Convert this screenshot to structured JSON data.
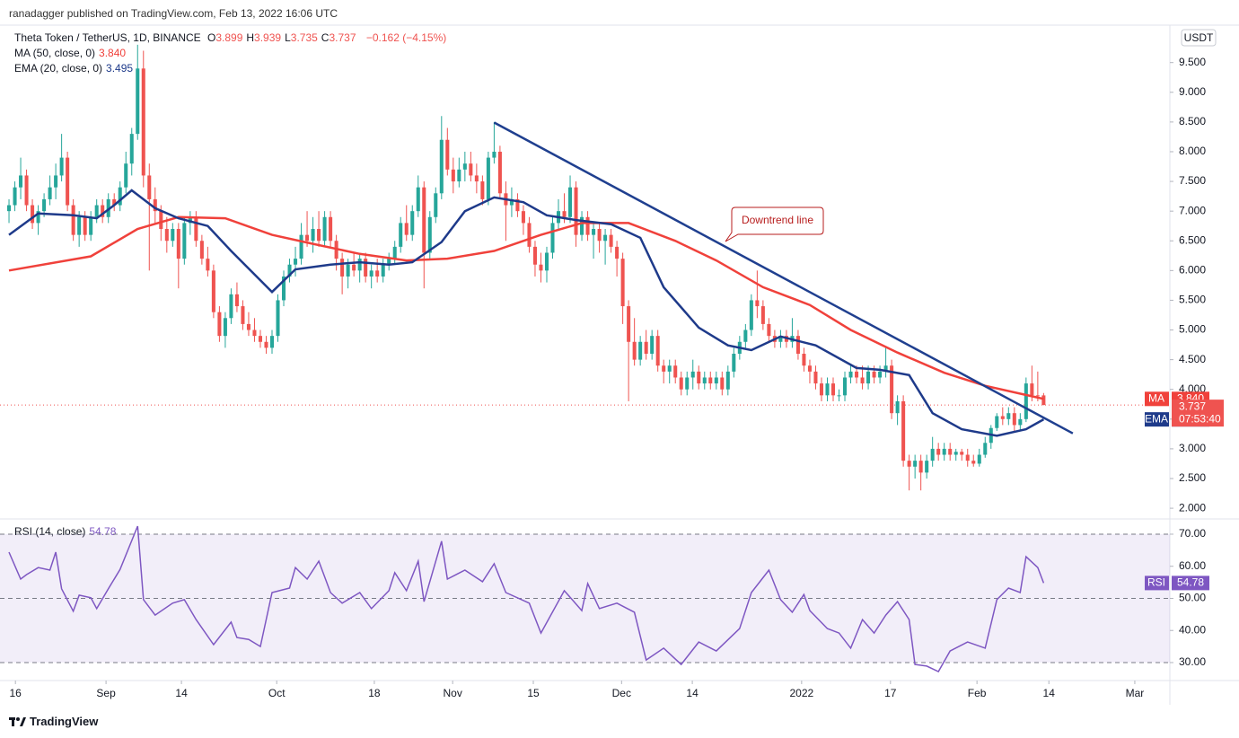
{
  "header": {
    "byline": "ranadagger published on TradingView.com, Feb 13, 2022 16:06 UTC"
  },
  "footer": {
    "brand": "TradingView"
  },
  "chart_data": {
    "type": "candlestick",
    "title": "Theta Token / TetherUS, 1D, BINANCE",
    "ohlc_labels": [
      "O",
      "H",
      "L",
      "C"
    ],
    "change_label": "−0.162 (−4.15%)",
    "currency": "USDT",
    "countdown": "07:53:40",
    "up_color": "#26a69a",
    "down_color": "#ef5350",
    "ohlc": [
      [
        7.0,
        7.2,
        6.8,
        7.1
      ],
      [
        7.1,
        7.5,
        7.0,
        7.4
      ],
      [
        7.4,
        7.9,
        7.2,
        7.6
      ],
      [
        7.6,
        7.7,
        7.0,
        7.1
      ],
      [
        7.1,
        7.2,
        6.7,
        6.8
      ],
      [
        6.8,
        7.1,
        6.6,
        7.0
      ],
      [
        7.0,
        7.3,
        6.9,
        7.2
      ],
      [
        7.2,
        7.6,
        7.1,
        7.4
      ],
      [
        7.4,
        7.8,
        7.2,
        7.6
      ],
      [
        7.6,
        8.3,
        7.5,
        7.9
      ],
      [
        7.9,
        8.0,
        7.0,
        7.1
      ],
      [
        7.1,
        7.2,
        6.5,
        6.6
      ],
      [
        6.6,
        7.0,
        6.4,
        6.9
      ],
      [
        6.9,
        7.0,
        6.5,
        6.6
      ],
      [
        6.6,
        7.0,
        6.5,
        6.9
      ],
      [
        6.9,
        7.2,
        6.8,
        7.1
      ],
      [
        7.1,
        7.2,
        6.8,
        6.9
      ],
      [
        6.9,
        7.3,
        6.8,
        7.2
      ],
      [
        7.2,
        7.3,
        7.0,
        7.1
      ],
      [
        7.1,
        7.5,
        7.0,
        7.4
      ],
      [
        7.4,
        8.0,
        7.3,
        7.8
      ],
      [
        7.8,
        8.4,
        7.6,
        8.3
      ],
      [
        8.3,
        9.8,
        8.2,
        9.4
      ],
      [
        9.4,
        9.7,
        7.4,
        7.6
      ],
      [
        7.6,
        7.8,
        6.0,
        7.2
      ],
      [
        7.2,
        7.4,
        6.8,
        7.0
      ],
      [
        7.0,
        7.1,
        6.5,
        6.7
      ],
      [
        6.7,
        6.9,
        6.3,
        6.5
      ],
      [
        6.5,
        6.8,
        6.4,
        6.7
      ],
      [
        6.7,
        6.8,
        5.7,
        6.2
      ],
      [
        6.2,
        6.9,
        6.1,
        6.8
      ],
      [
        6.8,
        7.0,
        6.6,
        6.9
      ],
      [
        6.9,
        7.0,
        6.4,
        6.5
      ],
      [
        6.5,
        6.6,
        6.1,
        6.2
      ],
      [
        6.2,
        6.4,
        5.9,
        6.0
      ],
      [
        6.0,
        6.1,
        5.2,
        5.3
      ],
      [
        5.3,
        5.4,
        4.8,
        4.9
      ],
      [
        4.9,
        5.3,
        4.7,
        5.2
      ],
      [
        5.2,
        5.7,
        5.1,
        5.6
      ],
      [
        5.6,
        5.8,
        5.3,
        5.4
      ],
      [
        5.4,
        5.5,
        5.0,
        5.1
      ],
      [
        5.1,
        5.3,
        4.9,
        5.0
      ],
      [
        5.0,
        5.2,
        4.8,
        4.9
      ],
      [
        4.9,
        5.0,
        4.7,
        4.8
      ],
      [
        4.8,
        4.9,
        4.6,
        4.7
      ],
      [
        4.7,
        5.0,
        4.6,
        4.9
      ],
      [
        4.9,
        5.6,
        4.8,
        5.5
      ],
      [
        5.5,
        6.0,
        5.4,
        5.9
      ],
      [
        5.9,
        6.2,
        5.8,
        6.1
      ],
      [
        6.1,
        6.4,
        5.9,
        6.2
      ],
      [
        6.2,
        6.8,
        6.1,
        6.6
      ],
      [
        6.6,
        7.0,
        6.4,
        6.5
      ],
      [
        6.5,
        6.9,
        6.3,
        6.7
      ],
      [
        6.7,
        7.0,
        6.4,
        6.5
      ],
      [
        6.5,
        7.0,
        6.4,
        6.9
      ],
      [
        6.9,
        7.0,
        6.4,
        6.5
      ],
      [
        6.5,
        6.6,
        6.0,
        6.2
      ],
      [
        6.2,
        6.3,
        5.6,
        5.9
      ],
      [
        5.9,
        6.2,
        5.7,
        6.1
      ],
      [
        6.1,
        6.3,
        5.9,
        6.0
      ],
      [
        6.0,
        6.3,
        5.8,
        6.2
      ],
      [
        6.2,
        6.3,
        5.8,
        5.9
      ],
      [
        5.9,
        6.1,
        5.7,
        6.0
      ],
      [
        6.0,
        6.2,
        5.8,
        5.9
      ],
      [
        5.9,
        6.2,
        5.8,
        6.1
      ],
      [
        6.1,
        6.3,
        6.0,
        6.2
      ],
      [
        6.2,
        6.5,
        6.1,
        6.4
      ],
      [
        6.4,
        6.9,
        6.3,
        6.8
      ],
      [
        6.8,
        7.1,
        6.5,
        6.6
      ],
      [
        6.6,
        7.1,
        6.5,
        7.0
      ],
      [
        7.0,
        7.6,
        6.9,
        7.4
      ],
      [
        7.4,
        7.5,
        5.7,
        6.3
      ],
      [
        6.3,
        7.0,
        6.2,
        6.9
      ],
      [
        6.9,
        7.4,
        6.8,
        7.3
      ],
      [
        7.3,
        8.6,
        7.2,
        8.2
      ],
      [
        8.2,
        8.4,
        7.6,
        7.7
      ],
      [
        7.7,
        7.9,
        7.3,
        7.5
      ],
      [
        7.5,
        7.9,
        7.4,
        7.7
      ],
      [
        7.7,
        8.0,
        7.5,
        7.8
      ],
      [
        7.8,
        8.0,
        7.5,
        7.6
      ],
      [
        7.6,
        7.8,
        7.3,
        7.5
      ],
      [
        7.5,
        7.6,
        7.1,
        7.2
      ],
      [
        7.2,
        8.0,
        7.1,
        7.9
      ],
      [
        7.9,
        8.5,
        7.8,
        8.0
      ],
      [
        8.0,
        8.1,
        7.2,
        7.3
      ],
      [
        7.3,
        7.5,
        6.5,
        7.1
      ],
      [
        7.1,
        7.4,
        6.9,
        7.2
      ],
      [
        7.2,
        7.3,
        6.9,
        7.0
      ],
      [
        7.0,
        7.1,
        6.6,
        6.8
      ],
      [
        6.8,
        6.9,
        6.3,
        6.4
      ],
      [
        6.4,
        6.5,
        5.9,
        6.1
      ],
      [
        6.1,
        6.3,
        5.8,
        6.0
      ],
      [
        6.0,
        6.4,
        5.8,
        6.3
      ],
      [
        6.3,
        6.9,
        6.2,
        6.8
      ],
      [
        6.8,
        7.2,
        6.7,
        7.0
      ],
      [
        7.0,
        7.3,
        6.8,
        6.9
      ],
      [
        6.9,
        7.6,
        6.8,
        7.4
      ],
      [
        7.4,
        7.5,
        6.4,
        6.6
      ],
      [
        6.6,
        7.0,
        6.5,
        6.9
      ],
      [
        6.9,
        7.0,
        6.5,
        6.6
      ],
      [
        6.6,
        6.8,
        6.2,
        6.7
      ],
      [
        6.7,
        6.8,
        6.3,
        6.5
      ],
      [
        6.5,
        6.7,
        6.1,
        6.6
      ],
      [
        6.6,
        6.7,
        6.3,
        6.4
      ],
      [
        6.4,
        6.5,
        5.9,
        6.2
      ],
      [
        6.2,
        6.3,
        5.1,
        5.4
      ],
      [
        5.4,
        5.5,
        3.8,
        4.8
      ],
      [
        4.8,
        5.2,
        4.4,
        4.5
      ],
      [
        4.5,
        4.9,
        4.4,
        4.8
      ],
      [
        4.8,
        5.0,
        4.5,
        4.6
      ],
      [
        4.6,
        5.0,
        4.5,
        4.9
      ],
      [
        4.9,
        5.0,
        4.3,
        4.4
      ],
      [
        4.4,
        4.5,
        4.1,
        4.3
      ],
      [
        4.3,
        4.5,
        4.1,
        4.4
      ],
      [
        4.4,
        4.5,
        4.1,
        4.2
      ],
      [
        4.2,
        4.3,
        3.9,
        4.0
      ],
      [
        4.0,
        4.3,
        3.9,
        4.2
      ],
      [
        4.2,
        4.5,
        4.0,
        4.3
      ],
      [
        4.3,
        4.4,
        4.0,
        4.1
      ],
      [
        4.1,
        4.3,
        4.0,
        4.2
      ],
      [
        4.2,
        4.3,
        4.0,
        4.1
      ],
      [
        4.1,
        4.3,
        4.0,
        4.2
      ],
      [
        4.2,
        4.3,
        3.9,
        4.0
      ],
      [
        4.0,
        4.4,
        3.9,
        4.3
      ],
      [
        4.3,
        4.7,
        4.2,
        4.6
      ],
      [
        4.6,
        4.9,
        4.5,
        4.8
      ],
      [
        4.8,
        5.1,
        4.7,
        5.0
      ],
      [
        5.0,
        5.6,
        4.9,
        5.5
      ],
      [
        5.5,
        6.0,
        5.2,
        5.4
      ],
      [
        5.4,
        5.5,
        5.0,
        5.1
      ],
      [
        5.1,
        5.2,
        4.8,
        4.9
      ],
      [
        4.9,
        5.0,
        4.7,
        4.8
      ],
      [
        4.8,
        5.0,
        4.7,
        4.9
      ],
      [
        4.9,
        5.0,
        4.7,
        4.8
      ],
      [
        4.8,
        5.2,
        4.7,
        4.9
      ],
      [
        4.9,
        5.0,
        4.5,
        4.6
      ],
      [
        4.6,
        4.7,
        4.3,
        4.4
      ],
      [
        4.4,
        4.5,
        4.1,
        4.3
      ],
      [
        4.3,
        4.4,
        4.0,
        4.1
      ],
      [
        4.1,
        4.2,
        3.8,
        3.9
      ],
      [
        3.9,
        4.2,
        3.8,
        4.1
      ],
      [
        4.1,
        4.2,
        3.8,
        3.9
      ],
      [
        3.9,
        4.0,
        3.8,
        3.9
      ],
      [
        3.9,
        4.3,
        3.8,
        4.2
      ],
      [
        4.2,
        4.4,
        4.1,
        4.3
      ],
      [
        4.3,
        4.4,
        4.1,
        4.2
      ],
      [
        4.2,
        4.4,
        4.0,
        4.1
      ],
      [
        4.1,
        4.4,
        4.0,
        4.3
      ],
      [
        4.3,
        4.4,
        4.1,
        4.2
      ],
      [
        4.2,
        4.4,
        4.1,
        4.3
      ],
      [
        4.3,
        4.7,
        4.2,
        4.4
      ],
      [
        4.4,
        4.5,
        3.5,
        3.6
      ],
      [
        3.6,
        3.9,
        3.4,
        3.8
      ],
      [
        3.8,
        3.9,
        2.7,
        2.8
      ],
      [
        2.8,
        2.9,
        2.3,
        2.7
      ],
      [
        2.7,
        2.9,
        2.5,
        2.8
      ],
      [
        2.8,
        2.9,
        2.3,
        2.6
      ],
      [
        2.6,
        2.9,
        2.5,
        2.8
      ],
      [
        2.8,
        3.2,
        2.7,
        3.0
      ],
      [
        3.0,
        3.1,
        2.8,
        2.9
      ],
      [
        2.9,
        3.1,
        2.8,
        3.0
      ],
      [
        3.0,
        3.1,
        2.8,
        2.9
      ],
      [
        2.9,
        3.0,
        2.8,
        2.95
      ],
      [
        2.95,
        3.0,
        2.8,
        2.9
      ],
      [
        2.9,
        3.0,
        2.7,
        2.8
      ],
      [
        2.8,
        2.9,
        2.7,
        2.75
      ],
      [
        2.75,
        3.0,
        2.7,
        2.9
      ],
      [
        2.9,
        3.2,
        2.85,
        3.1
      ],
      [
        3.1,
        3.4,
        3.0,
        3.35
      ],
      [
        3.35,
        3.6,
        3.3,
        3.55
      ],
      [
        3.55,
        3.7,
        3.4,
        3.5
      ],
      [
        3.5,
        3.7,
        3.4,
        3.6
      ],
      [
        3.6,
        3.7,
        3.3,
        3.4
      ],
      [
        3.4,
        3.6,
        3.3,
        3.5
      ],
      [
        3.5,
        4.2,
        3.45,
        4.1
      ],
      [
        4.1,
        4.4,
        3.8,
        3.9
      ],
      [
        3.9,
        4.3,
        3.8,
        3.899
      ],
      [
        3.899,
        3.939,
        3.735,
        3.737
      ]
    ],
    "xlim": [
      -1.54,
      198.6
    ],
    "xticks": [
      {
        "value": 1.1,
        "label": "16"
      },
      {
        "value": 16.6,
        "label": "Sep"
      },
      {
        "value": 29.5,
        "label": "14"
      },
      {
        "value": 45.8,
        "label": "Oct"
      },
      {
        "value": 62.5,
        "label": "18"
      },
      {
        "value": 75.9,
        "label": "Nov"
      },
      {
        "value": 89.7,
        "label": "15"
      },
      {
        "value": 104.8,
        "label": "Dec"
      },
      {
        "value": 116.9,
        "label": "14"
      },
      {
        "value": 135.6,
        "label": "2022"
      },
      {
        "value": 150.8,
        "label": "17"
      },
      {
        "value": 165.6,
        "label": "Feb"
      },
      {
        "value": 177.9,
        "label": "14"
      },
      {
        "value": 192.6,
        "label": "Mar"
      }
    ],
    "ylim": [
      1.82,
      10.13
    ],
    "yticks": [
      {
        "value": 2,
        "label": "2.000"
      },
      {
        "value": 2.5,
        "label": "2.500"
      },
      {
        "value": 3,
        "label": "3.000"
      },
      {
        "value": 3.5,
        "label": "3.500"
      },
      {
        "value": 4,
        "label": "4.000"
      },
      {
        "value": 4.5,
        "label": "4.500"
      },
      {
        "value": 5,
        "label": "5.000"
      },
      {
        "value": 5.5,
        "label": "5.500"
      },
      {
        "value": 6,
        "label": "6.000"
      },
      {
        "value": 6.5,
        "label": "6.500"
      },
      {
        "value": 7,
        "label": "7.000"
      },
      {
        "value": 7.5,
        "label": "7.500"
      },
      {
        "value": 8,
        "label": "8.000"
      },
      {
        "value": 8.5,
        "label": "8.500"
      },
      {
        "value": 9,
        "label": "9.000"
      },
      {
        "value": 9.5,
        "label": "9.500"
      }
    ],
    "series": [
      {
        "name": "MA (50, close, 0)",
        "short_name": "MA",
        "color": "#f0413b",
        "last_label": "3.840",
        "x": [
          0,
          14,
          22,
          29,
          37,
          45,
          52,
          60,
          68,
          75,
          83,
          91,
          98,
          106,
          114,
          121,
          129,
          137,
          144,
          152,
          160,
          167,
          177
        ],
        "values": [
          6.0,
          6.24,
          6.7,
          6.9,
          6.88,
          6.6,
          6.45,
          6.28,
          6.17,
          6.2,
          6.33,
          6.6,
          6.8,
          6.8,
          6.5,
          6.17,
          5.72,
          5.42,
          5.0,
          4.62,
          4.28,
          4.06,
          3.84
        ]
      },
      {
        "name": "EMA (20, close, 0)",
        "short_name": "EMA",
        "color": "#1e3a8a",
        "last_label": "3.495",
        "x": [
          0,
          5,
          11,
          15,
          18,
          21,
          25,
          29,
          34,
          38,
          45,
          49,
          55,
          60,
          65,
          69,
          74,
          78,
          83,
          88,
          92,
          97,
          103,
          108,
          112,
          118,
          123,
          127,
          132,
          138,
          145,
          149,
          154,
          158,
          163,
          169,
          174,
          177
        ],
        "values": [
          6.6,
          6.96,
          6.93,
          6.88,
          7.1,
          7.35,
          7.05,
          6.88,
          6.75,
          6.33,
          5.64,
          6.02,
          6.1,
          6.14,
          6.1,
          6.14,
          6.48,
          7.0,
          7.23,
          7.15,
          6.93,
          6.85,
          6.78,
          6.55,
          5.72,
          5.04,
          4.74,
          4.66,
          4.89,
          4.74,
          4.36,
          4.33,
          4.24,
          3.6,
          3.33,
          3.22,
          3.33,
          3.495
        ]
      }
    ],
    "trendline": {
      "name": "Downtrend line",
      "color": "#1f3f8f",
      "x": [
        83,
        182
      ],
      "values": [
        8.49,
        3.26
      ]
    },
    "rsi": {
      "name": "RSI (14, close)",
      "short_name": "RSI",
      "color": "#7e57c2",
      "x": [
        0,
        2,
        3,
        5,
        7,
        8,
        9,
        11,
        12,
        14,
        15,
        17,
        19,
        22,
        23,
        25,
        28,
        30,
        32,
        35,
        38,
        39,
        41,
        43,
        45,
        48,
        49,
        51,
        53,
        55,
        57,
        60,
        62,
        65,
        66,
        68,
        70,
        71,
        74,
        75,
        78,
        81,
        83,
        85,
        89,
        91,
        95,
        98,
        99,
        101,
        104,
        107,
        109,
        112,
        115,
        118,
        121,
        125,
        127,
        130,
        132,
        134,
        136,
        137,
        140,
        142,
        144,
        146,
        148,
        150,
        152,
        154,
        155,
        157,
        159,
        161,
        164,
        167,
        169,
        171,
        173,
        174,
        176,
        177
      ],
      "values": [
        64.4,
        56,
        57.4,
        59.6,
        58.8,
        64.4,
        53,
        46,
        51,
        50.2,
        46.8,
        53,
        59,
        72.5,
        49.6,
        44.8,
        48.5,
        49.6,
        43.4,
        35.6,
        42.6,
        37.8,
        37.2,
        35,
        51.8,
        53.2,
        59.6,
        56,
        61.6,
        51.8,
        48.5,
        51.8,
        46.8,
        52.4,
        58,
        52.4,
        61.6,
        49,
        67.8,
        56,
        58.8,
        55.2,
        60.8,
        51.8,
        48.5,
        39.2,
        52.4,
        46.2,
        54.6,
        46.8,
        48.5,
        45.7,
        30.8,
        34.5,
        29.4,
        36.4,
        33.6,
        40.6,
        51.8,
        58.8,
        49.6,
        45.7,
        51.2,
        46.2,
        40.6,
        39.2,
        34.5,
        43.4,
        39.2,
        44.8,
        49,
        43.4,
        29.4,
        28.9,
        27.2,
        33.6,
        36.4,
        34.5,
        49.6,
        53.2,
        51.8,
        63,
        59.6,
        54.78
      ],
      "ylim": [
        24.4,
        74.75
      ],
      "yticks": [
        {
          "value": 30,
          "label": "30.00"
        },
        {
          "value": 40,
          "label": "40.00"
        },
        {
          "value": 50,
          "label": "50.00"
        },
        {
          "value": 60,
          "label": "60.00"
        },
        {
          "value": 70,
          "label": "70.00"
        }
      ],
      "band": [
        30,
        70
      ],
      "midline": 50
    }
  }
}
